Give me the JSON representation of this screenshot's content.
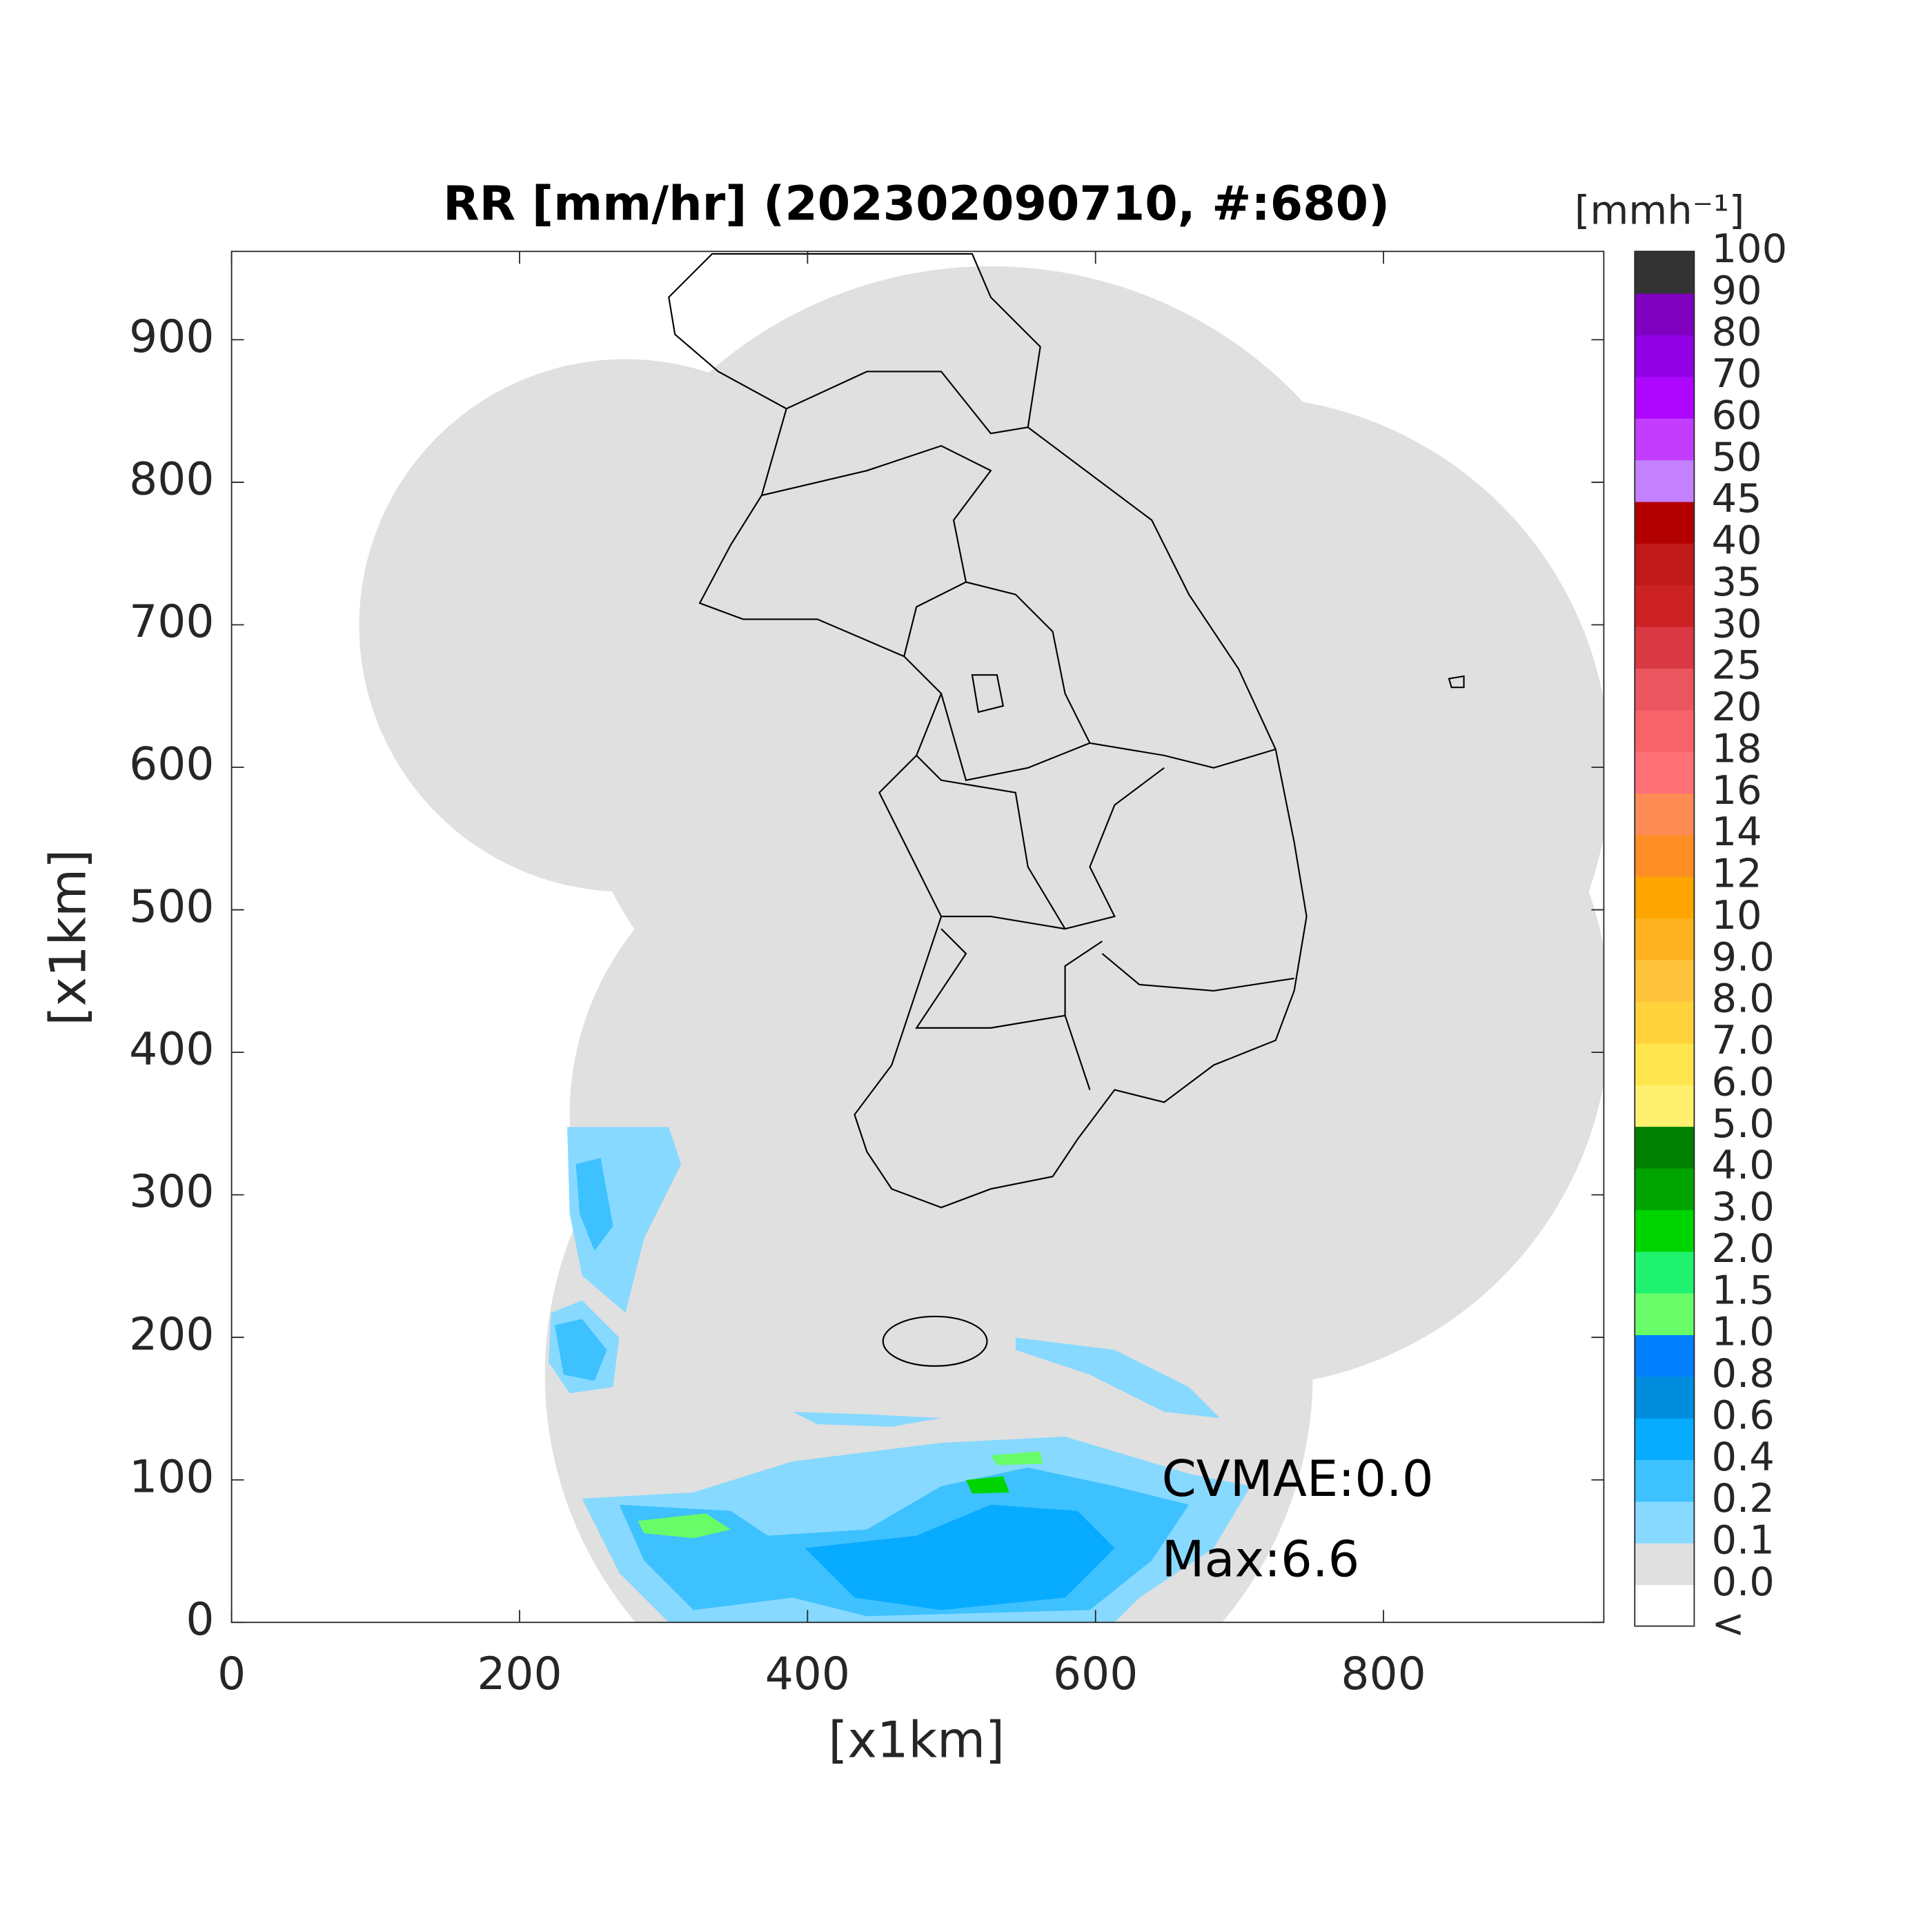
{
  "chart_data": {
    "type": "heatmap",
    "title": "RR [mm/hr] (202302090710, #:680)",
    "x_label": "[x1km]",
    "y_label": "[x1km]",
    "xlim": [
      0,
      953
    ],
    "ylim": [
      0,
      962
    ],
    "xticks": [
      0,
      200,
      400,
      600,
      800
    ],
    "yticks": [
      0,
      100,
      200,
      300,
      400,
      500,
      600,
      700,
      800,
      900
    ],
    "annotations": [
      "CVMAE:0.0",
      "Max:6.6"
    ],
    "colorbar": {
      "unit": "[mmh⁻¹]",
      "labels": [
        "<",
        "0.0",
        "0.1",
        "0.2",
        "0.4",
        "0.6",
        "0.8",
        "1.0",
        "1.5",
        "2.0",
        "3.0",
        "4.0",
        "5.0",
        "6.0",
        "7.0",
        "8.0",
        "9.0",
        "10",
        "12",
        "14",
        "16",
        "18",
        "20",
        "25",
        "30",
        "35",
        "40",
        "45",
        "50",
        "60",
        "70",
        "80",
        "90",
        "100"
      ],
      "colors": [
        "#ffffff",
        "#e0e0e0",
        "#87d9ff",
        "#3ec1ff",
        "#07abff",
        "#008dde",
        "#0080ff",
        "#69fc69",
        "#1ef26e",
        "#00d500",
        "#00a400",
        "#008000",
        "#fff06f",
        "#ffe64f",
        "#ffd23c",
        "#ffc43b",
        "#ffb320",
        "#ffa500",
        "#ff8e24",
        "#ff8b55",
        "#ff7077",
        "#f8636a",
        "#eb5560",
        "#d93943",
        "#cd2224",
        "#c0191a",
        "#b20000",
        "#c481ff",
        "#c33dff",
        "#ad07ff",
        "#9200e4",
        "#7f00bf",
        "#333333"
      ]
    }
  }
}
